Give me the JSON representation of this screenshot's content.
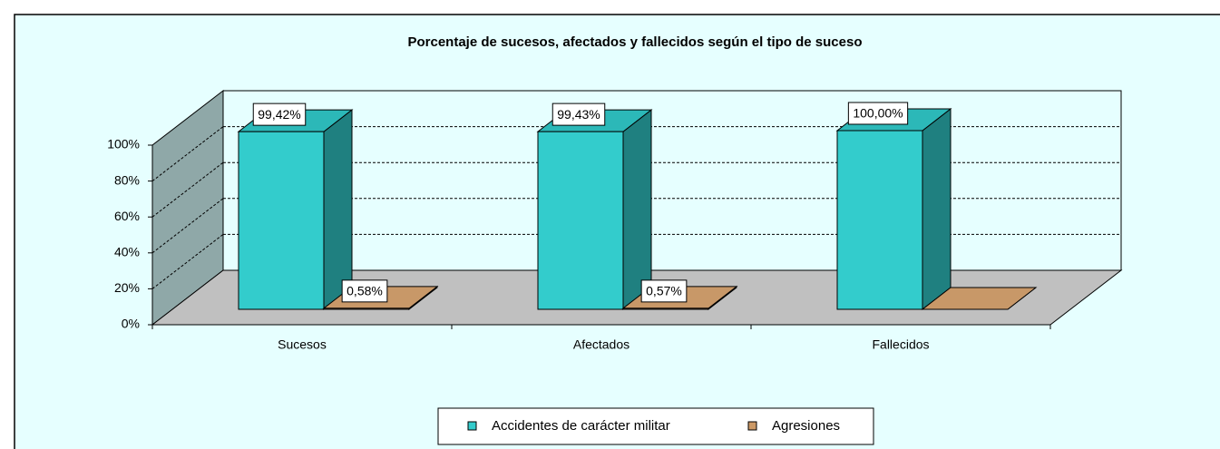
{
  "chart_data": {
    "type": "bar3d",
    "title": "Porcentaje de sucesos, afectados y fallecidos según el tipo de suceso",
    "categories": [
      "Sucesos",
      "Afectados",
      "Fallecidos"
    ],
    "series": [
      {
        "name": "Accidentes de carácter militar",
        "color": "#33cccc",
        "side_color": "#1f8080",
        "top_color": "#2cb8b8",
        "values": [
          99.42,
          99.43,
          100
        ],
        "value_labels": [
          "99,42%",
          "99,43%",
          "100,00%"
        ]
      },
      {
        "name": "Agresiones",
        "color": "#cc9966",
        "side_color": "#a07040",
        "top_color": "#c89868",
        "values": [
          0.58,
          0.57,
          0
        ],
        "value_labels": [
          "0,58%",
          "0,57%",
          null
        ]
      }
    ],
    "ylim": [
      0,
      100
    ],
    "yticks": [
      {
        "value": 0,
        "label": "0%"
      },
      {
        "value": 20,
        "label": "20%"
      },
      {
        "value": 40,
        "label": "40%"
      },
      {
        "value": 60,
        "label": "60%"
      },
      {
        "value": 80,
        "label": "80%"
      },
      {
        "value": 100,
        "label": "100%"
      }
    ],
    "grid": true,
    "legend": "bottom"
  }
}
